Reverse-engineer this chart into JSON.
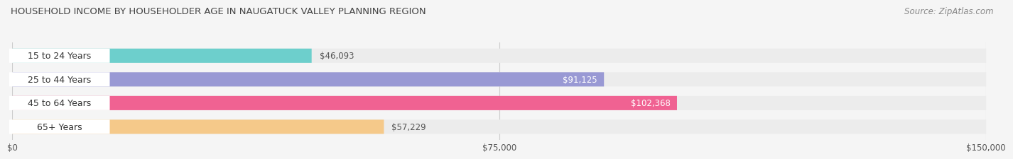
{
  "title": "HOUSEHOLD INCOME BY HOUSEHOLDER AGE IN NAUGATUCK VALLEY PLANNING REGION",
  "source": "Source: ZipAtlas.com",
  "categories": [
    "15 to 24 Years",
    "25 to 44 Years",
    "45 to 64 Years",
    "65+ Years"
  ],
  "values": [
    46093,
    91125,
    102368,
    57229
  ],
  "bar_colors": [
    "#6dcfcc",
    "#9999d4",
    "#f06292",
    "#f5c98a"
  ],
  "value_labels": [
    "$46,093",
    "$91,125",
    "$102,368",
    "$57,229"
  ],
  "value_inside": [
    false,
    true,
    true,
    false
  ],
  "xlim": [
    0,
    150000
  ],
  "xticks": [
    0,
    75000,
    150000
  ],
  "xtick_labels": [
    "$0",
    "$75,000",
    "$150,000"
  ],
  "background_color": "#f5f5f5",
  "bar_bg_color": "#ececec",
  "label_bg_color": "#ffffff",
  "title_fontsize": 9.5,
  "source_fontsize": 8.5,
  "tick_fontsize": 8.5,
  "cat_fontsize": 9,
  "value_fontsize": 8.5
}
